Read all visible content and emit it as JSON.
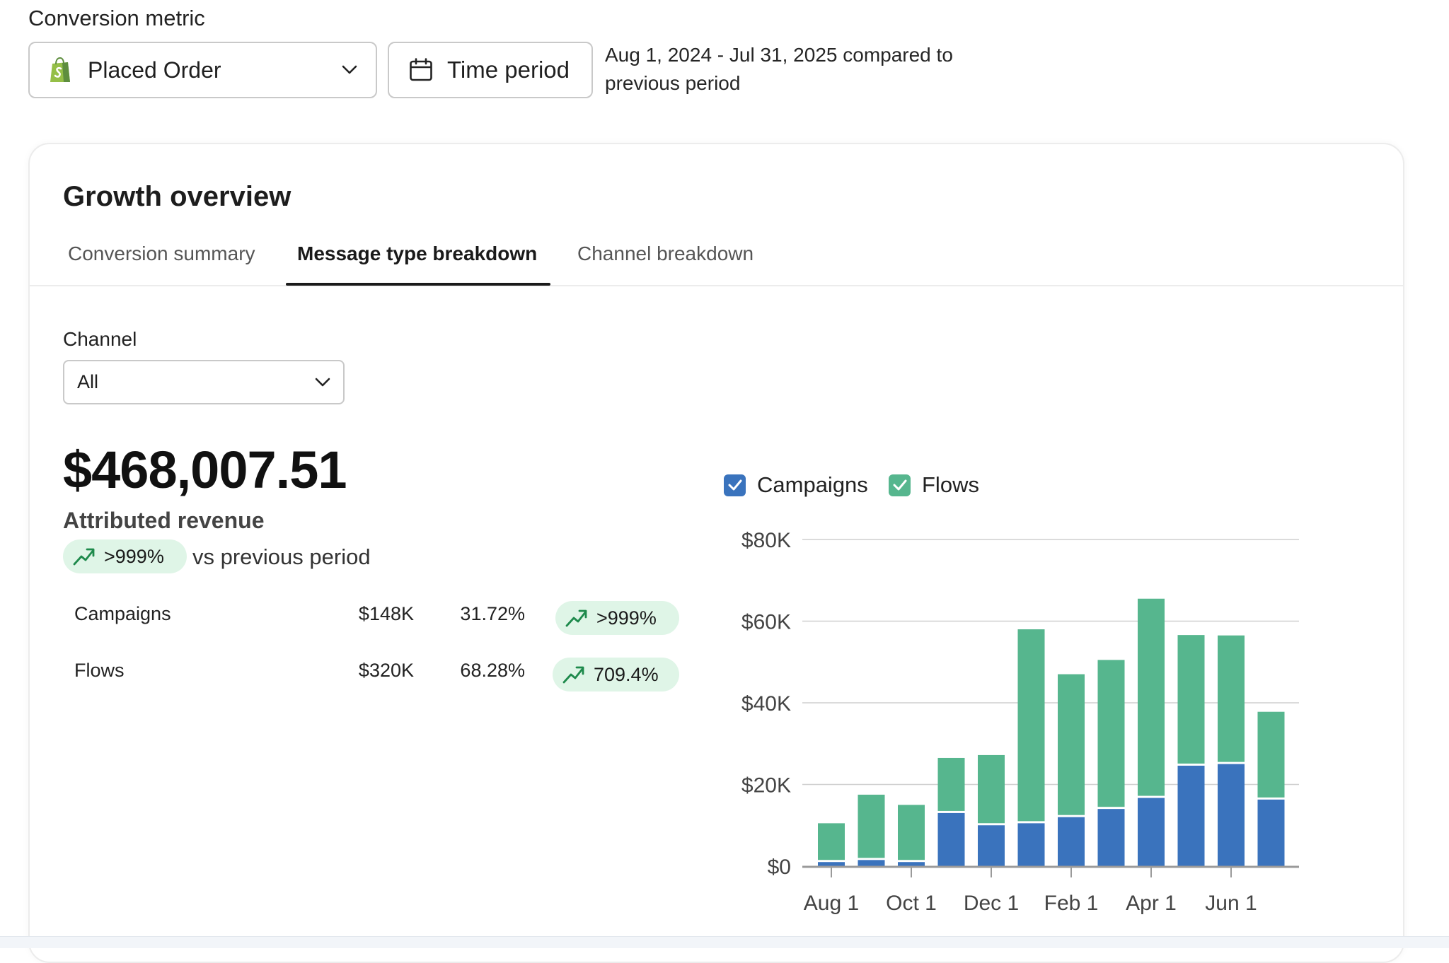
{
  "header": {
    "metric_label": "Conversion metric",
    "metric_value": "Placed Order",
    "time_button": "Time period",
    "date_range_line1": "Aug 1, 2024 - Jul 31, 2025 compared to",
    "date_range_line2": "previous period"
  },
  "card": {
    "title": "Growth overview",
    "tabs": [
      {
        "label": "Conversion summary"
      },
      {
        "label": "Message type breakdown",
        "active": true
      },
      {
        "label": "Channel breakdown"
      }
    ]
  },
  "filters": {
    "channel_label": "Channel",
    "channel_value": "All"
  },
  "summary": {
    "revenue": "$468,007.51",
    "revenue_label": "Attributed revenue",
    "change": ">999%",
    "change_suffix": "vs previous period",
    "rows": [
      {
        "name": "Campaigns",
        "amount": "$148K",
        "share": "31.72%",
        "change": ">999%"
      },
      {
        "name": "Flows",
        "amount": "$320K",
        "share": "68.28%",
        "change": "709.4%"
      }
    ]
  },
  "colors": {
    "campaigns": "#3a73bd",
    "flows": "#56b68e",
    "pill_bg": "#dff5e7",
    "pill_arrow": "#1e8a4c"
  },
  "icons": {
    "metric": "shopify-bag-icon",
    "calendar": "calendar-icon",
    "dropdown": "chevron-down-icon",
    "trend": "trend-up-icon",
    "checkbox": "checkbox-checked-icon"
  },
  "chart_data": {
    "type": "bar",
    "stacked": true,
    "legend": [
      "Campaigns",
      "Flows"
    ],
    "legend_position": "top-left",
    "grid": true,
    "categories": [
      "Aug",
      "Sep",
      "Oct",
      "Nov",
      "Dec",
      "Jan",
      "Feb",
      "Mar",
      "Apr",
      "May",
      "Jun",
      "Jul"
    ],
    "x_tick_labels": [
      {
        "index": 0,
        "label": "Aug 1"
      },
      {
        "index": 2,
        "label": "Oct 1"
      },
      {
        "index": 4,
        "label": "Dec 1"
      },
      {
        "index": 6,
        "label": "Feb 1"
      },
      {
        "index": 8,
        "label": "Apr 1"
      },
      {
        "index": 10,
        "label": "Jun 1"
      }
    ],
    "y_ticks": [
      0,
      20000,
      40000,
      60000,
      80000
    ],
    "y_tick_labels": [
      "$0",
      "$20K",
      "$40K",
      "$60K",
      "$80K"
    ],
    "ylim": [
      0,
      80000
    ],
    "series": [
      {
        "name": "Campaigns",
        "color": "#3a73bd",
        "values": [
          1000,
          1500,
          1000,
          13000,
          10000,
          10500,
          12000,
          14000,
          16700,
          24600,
          25000,
          16300
        ]
      },
      {
        "name": "Flows",
        "color": "#56b68e",
        "values": [
          9500,
          16000,
          14000,
          13500,
          17200,
          47500,
          35000,
          36500,
          48800,
          32000,
          31500,
          21500
        ]
      }
    ]
  }
}
